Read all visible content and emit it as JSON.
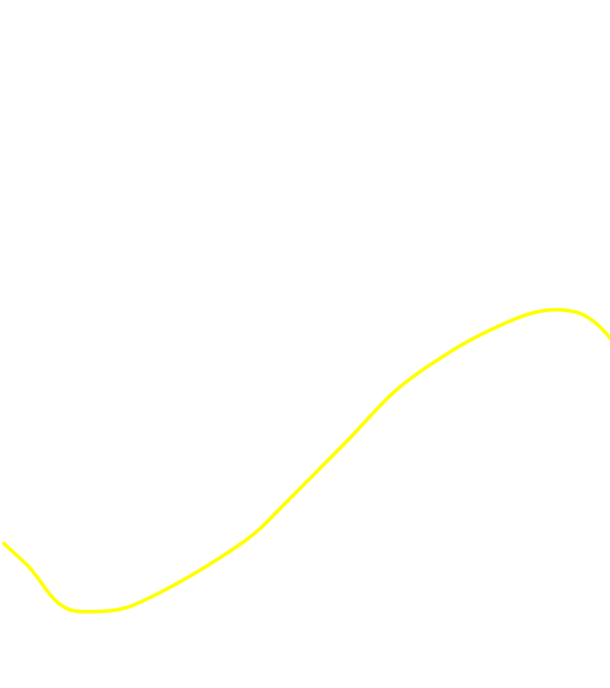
{
  "canvas": {
    "background": "#ffffff",
    "stroke_color": "#ffff00"
  }
}
